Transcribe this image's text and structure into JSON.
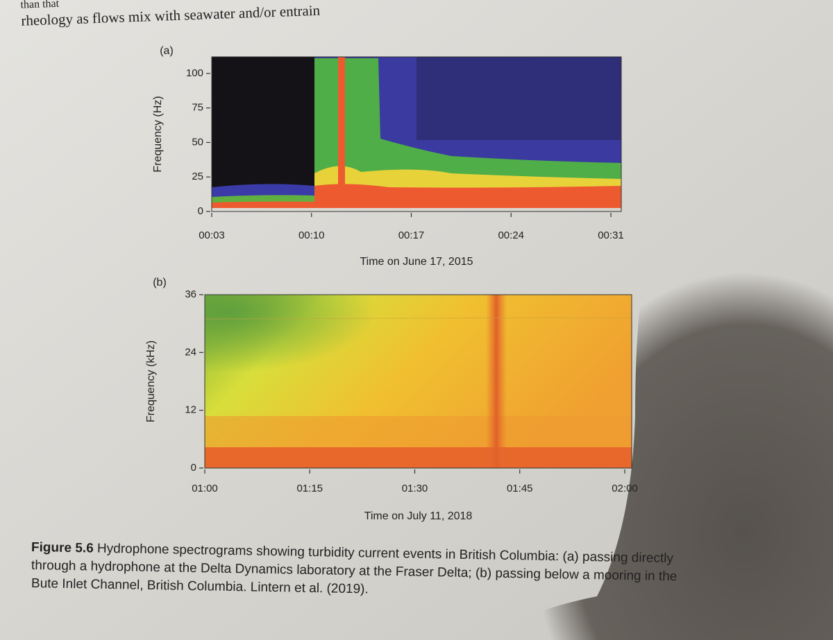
{
  "running_text": [
    "than that",
    "rheology as flows mix with seawater and/or entrain"
  ],
  "chart_data": [
    {
      "type": "spectrogram",
      "panel_label": "(a)",
      "y_label": "Frequency (Hz)",
      "x_label": "Time on June 17, 2015",
      "xticks": [
        "00:03",
        "00:10",
        "00:17",
        "00:24",
        "00:31"
      ],
      "ylim": [
        0,
        112
      ],
      "yticks": [
        0,
        25,
        50,
        75,
        100
      ]
    },
    {
      "type": "spectrogram",
      "panel_label": "(b)",
      "y_label": "Frequency (kHz)",
      "x_label": "Time on July 11, 2018",
      "xticks": [
        "01:00",
        "01:15",
        "01:30",
        "01:45",
        "02:00"
      ],
      "ylim": [
        0,
        36
      ],
      "yticks": [
        0,
        12,
        24,
        36
      ]
    }
  ],
  "caption": {
    "label": "Figure 5.6",
    "lines": [
      "Hydrophone spectrograms showing turbidity current events in British Columbia: (a) passing directly",
      "through a hydrophone at the Delta Dynamics laboratory at the Fraser Delta; (b) passing below a mooring in the",
      "Bute Inlet Channel, British Columbia. Lintern et al. (2019)."
    ]
  }
}
